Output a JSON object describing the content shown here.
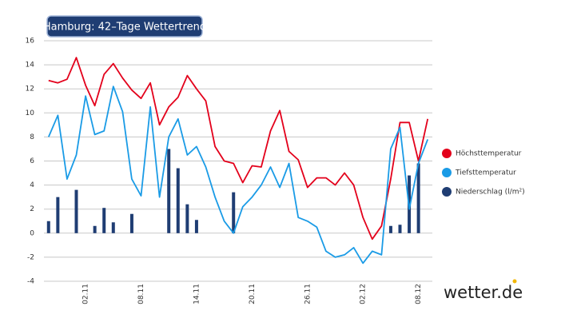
{
  "chart_data": {
    "type": "line",
    "title": "Hamburg: 42–Tage Wettertrend",
    "brand": "wetter.de",
    "categories": [
      null,
      null,
      null,
      null,
      "02.11",
      null,
      null,
      null,
      null,
      null,
      "08.11",
      null,
      null,
      null,
      null,
      null,
      "14.11",
      null,
      null,
      null,
      null,
      null,
      "20.11",
      null,
      null,
      null,
      null,
      null,
      "26.11",
      null,
      null,
      null,
      null,
      null,
      "02.12",
      null,
      null,
      null,
      null,
      null,
      "08.12",
      null
    ],
    "ylim": [
      -4,
      16
    ],
    "yticks": [
      -4,
      -2,
      0,
      2,
      4,
      6,
      8,
      10,
      12,
      14,
      16
    ],
    "grid": true,
    "series": [
      {
        "name": "Höchsttemperatur",
        "type": "line",
        "color": "#e3001b",
        "values": [
          12.7,
          12.5,
          12.8,
          14.6,
          12.3,
          10.6,
          13.2,
          14.1,
          12.9,
          11.9,
          11.2,
          12.5,
          9.0,
          10.5,
          11.3,
          13.1,
          12.0,
          11.0,
          7.2,
          6.0,
          5.8,
          4.2,
          5.6,
          5.5,
          8.5,
          10.2,
          6.8,
          6.1,
          3.8,
          4.6,
          4.6,
          4.0,
          5.0,
          4.0,
          1.3,
          -0.5,
          0.6,
          4.5,
          9.2,
          9.2,
          6.0,
          9.5
        ]
      },
      {
        "name": "Tiefsttemperatur",
        "type": "line",
        "color": "#1a9be6",
        "values": [
          8.0,
          9.8,
          4.5,
          6.5,
          11.4,
          8.2,
          8.5,
          12.2,
          10.1,
          4.5,
          3.1,
          10.5,
          3.0,
          8.0,
          9.5,
          6.5,
          7.2,
          5.5,
          3.0,
          1.0,
          0.0,
          2.2,
          3.0,
          4.0,
          5.5,
          3.8,
          5.8,
          1.3,
          1.0,
          0.5,
          -1.5,
          -2.0,
          -1.8,
          -1.2,
          -2.5,
          -1.5,
          -1.8,
          7.0,
          8.8,
          2.0,
          5.8,
          7.8
        ]
      },
      {
        "name": "Niederschlag (l/m²)",
        "type": "bar",
        "color": "#1f3d73",
        "values": [
          1.0,
          3.0,
          null,
          3.6,
          null,
          0.6,
          2.1,
          0.9,
          null,
          1.6,
          null,
          null,
          null,
          7.0,
          5.4,
          2.4,
          1.1,
          null,
          null,
          null,
          3.4,
          null,
          null,
          null,
          null,
          null,
          null,
          null,
          null,
          null,
          null,
          null,
          null,
          null,
          null,
          null,
          null,
          0.6,
          0.7,
          4.8,
          5.8,
          null
        ]
      }
    ]
  }
}
